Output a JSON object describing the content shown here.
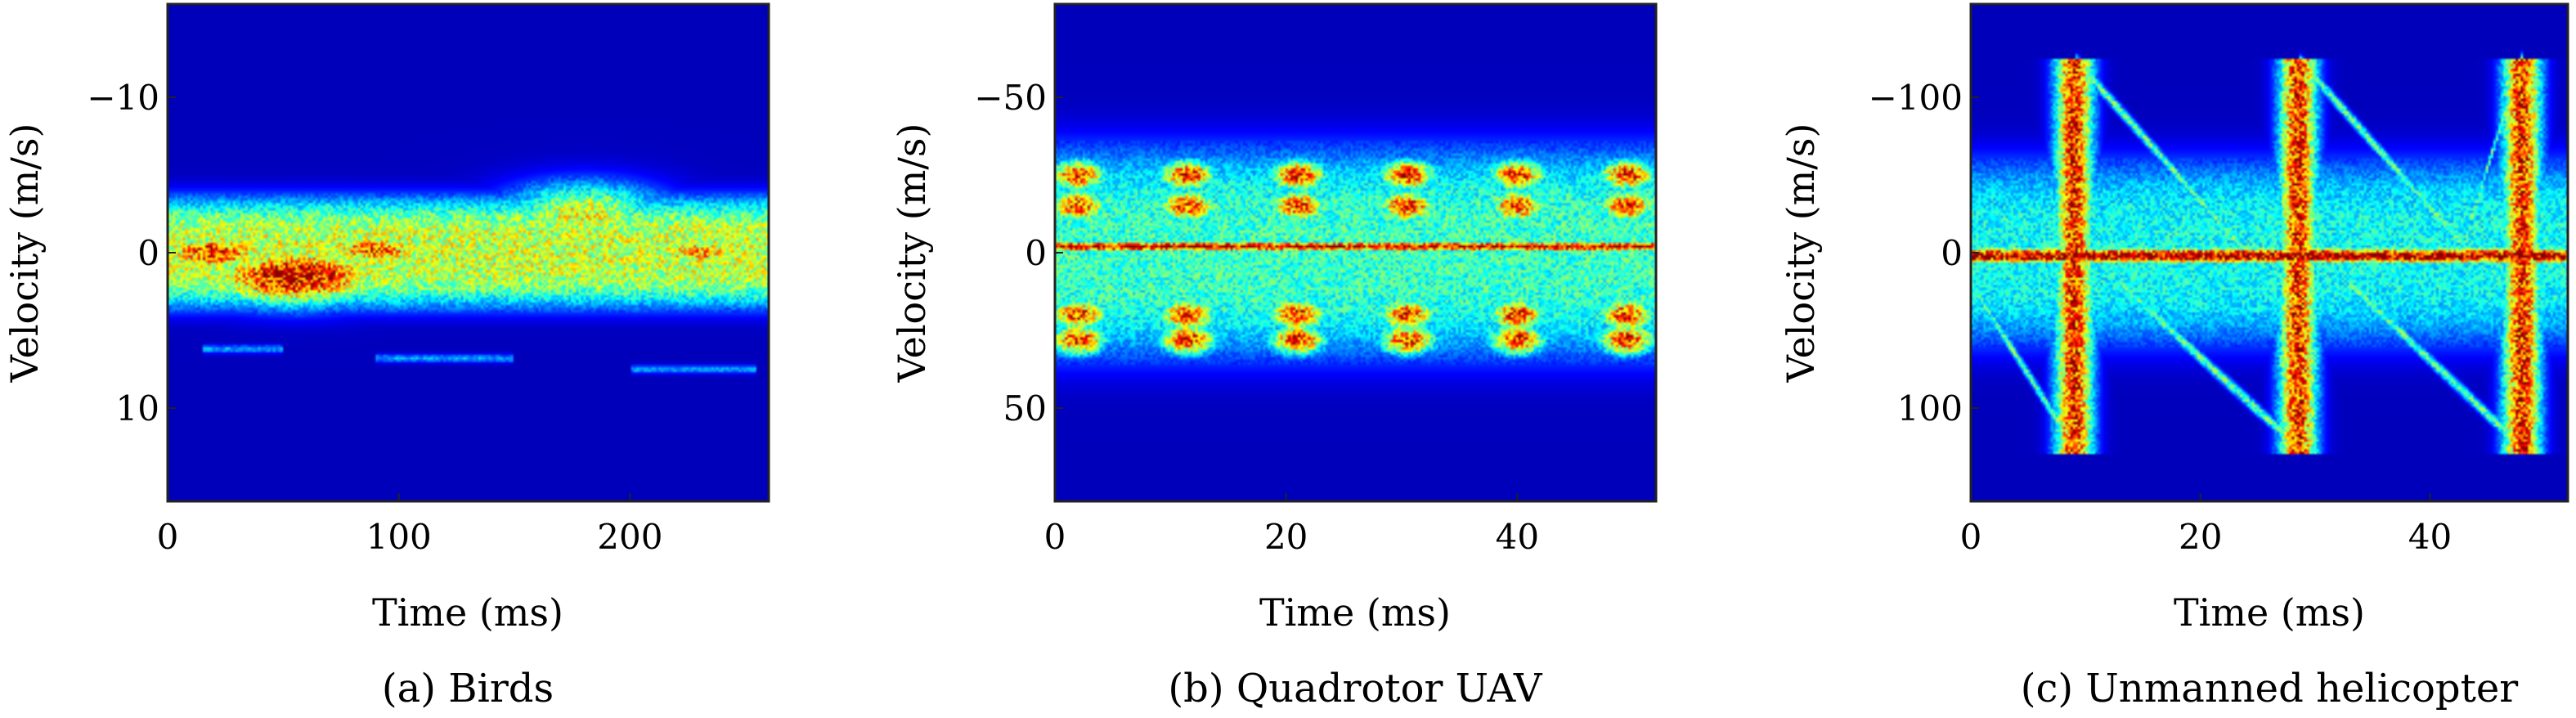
{
  "chart_data": [
    {
      "type": "heatmap",
      "caption": "(a) Birds",
      "xlabel": "Time (ms)",
      "ylabel": "Velocity (m/s)",
      "xlim": [
        0,
        260
      ],
      "ylim": [
        -16,
        16
      ],
      "y_inverted": true,
      "xticks": [
        0,
        100,
        200
      ],
      "xtick_labels": [
        "0",
        "100",
        "200"
      ],
      "yticks": [
        -10,
        0,
        10
      ],
      "ytick_labels": [
        "−10",
        "0",
        "10"
      ],
      "colormap": "jet",
      "features": [
        {
          "kind": "band",
          "x0": 0,
          "x1": 260,
          "center": 0,
          "halfwidth": 3.5,
          "intensity": 0.55
        },
        {
          "kind": "blob",
          "x": 55,
          "y": 1.5,
          "rx": 40,
          "ry": 1.8,
          "intensity": 0.95
        },
        {
          "kind": "blob",
          "x": 20,
          "y": 0,
          "rx": 25,
          "ry": 1.2,
          "intensity": 0.85
        },
        {
          "kind": "blob",
          "x": 90,
          "y": -0.2,
          "rx": 25,
          "ry": 1.0,
          "intensity": 0.8
        },
        {
          "kind": "blob",
          "x": 180,
          "y": -2.5,
          "rx": 35,
          "ry": 2.0,
          "intensity": 0.6
        },
        {
          "kind": "blob",
          "x": 230,
          "y": 0,
          "rx": 25,
          "ry": 1.2,
          "intensity": 0.7
        },
        {
          "kind": "streak",
          "x0": 15,
          "x1": 50,
          "y": 6.2,
          "intensity": 0.25
        },
        {
          "kind": "streak",
          "x0": 90,
          "x1": 150,
          "y": 6.8,
          "intensity": 0.25
        },
        {
          "kind": "streak",
          "x0": 200,
          "x1": 255,
          "y": 7.5,
          "intensity": 0.25
        }
      ]
    },
    {
      "type": "heatmap",
      "caption": "(b) Quadrotor UAV",
      "xlabel": "Time (ms)",
      "ylabel": "Velocity (m/s)",
      "xlim": [
        0,
        52
      ],
      "ylim": [
        -80,
        80
      ],
      "y_inverted": true,
      "xticks": [
        0,
        20,
        40
      ],
      "xtick_labels": [
        "0",
        "20",
        "40"
      ],
      "yticks": [
        -50,
        0,
        50
      ],
      "ytick_labels": [
        "−50",
        "0",
        "50"
      ],
      "colormap": "jet",
      "features": [
        {
          "kind": "band",
          "x0": 0,
          "x1": 52,
          "center": 0,
          "halfwidth": 34,
          "intensity": 0.4
        },
        {
          "kind": "line",
          "x0": 0,
          "x1": 52,
          "y": -2,
          "thickness": 1.5,
          "intensity": 0.95
        },
        {
          "kind": "periodic",
          "period": 9.5,
          "offset": 2,
          "ys": [
            -25,
            -15,
            20,
            28
          ],
          "rx": 2.5,
          "ry": 5,
          "intensity": 0.85
        }
      ]
    },
    {
      "type": "heatmap",
      "caption": "(c) Unmanned helicopter",
      "xlabel": "Time (ms)",
      "ylabel": "Velocity (m/s)",
      "xlim": [
        0,
        52
      ],
      "ylim": [
        -160,
        160
      ],
      "y_inverted": true,
      "xticks": [
        0,
        20,
        40
      ],
      "xtick_labels": [
        "0",
        "20",
        "40"
      ],
      "yticks": [
        -100,
        0,
        100
      ],
      "ytick_labels": [
        "−100",
        "0",
        "100"
      ],
      "colormap": "jet",
      "features": [
        {
          "kind": "band",
          "x0": 0,
          "x1": 52,
          "center": 0,
          "halfwidth": 60,
          "intensity": 0.35
        },
        {
          "kind": "line",
          "x0": 0,
          "x1": 52,
          "y": 2,
          "thickness": 5,
          "intensity": 1.0
        },
        {
          "kind": "flash",
          "x": 9,
          "y0": -125,
          "y1": 130,
          "halfwidth": 1.6,
          "intensity": 0.85
        },
        {
          "kind": "flash",
          "x": 28.5,
          "y0": -125,
          "y1": 130,
          "halfwidth": 1.6,
          "intensity": 0.85
        },
        {
          "kind": "flash",
          "x": 48,
          "y0": -125,
          "y1": 130,
          "halfwidth": 1.6,
          "intensity": 0.85
        },
        {
          "kind": "sweep",
          "x0": 9,
          "x1": 24,
          "ys": -125,
          "ye": 0,
          "intensity": 0.45
        },
        {
          "kind": "sweep",
          "x0": 28.5,
          "x1": 43.5,
          "ys": -125,
          "ye": 0,
          "intensity": 0.45
        },
        {
          "kind": "sweep",
          "x0": 0,
          "x1": 9,
          "ys": 20,
          "ye": 125,
          "intensity": 0.45
        },
        {
          "kind": "sweep",
          "x0": 13,
          "x1": 28.5,
          "ys": 20,
          "ye": 125,
          "intensity": 0.45
        },
        {
          "kind": "sweep",
          "x0": 33,
          "x1": 48,
          "ys": 20,
          "ye": 125,
          "intensity": 0.45
        },
        {
          "kind": "sweep",
          "x0": 43.5,
          "x1": 48,
          "ys": -20,
          "ye": -125,
          "intensity": 0.45
        }
      ]
    }
  ]
}
